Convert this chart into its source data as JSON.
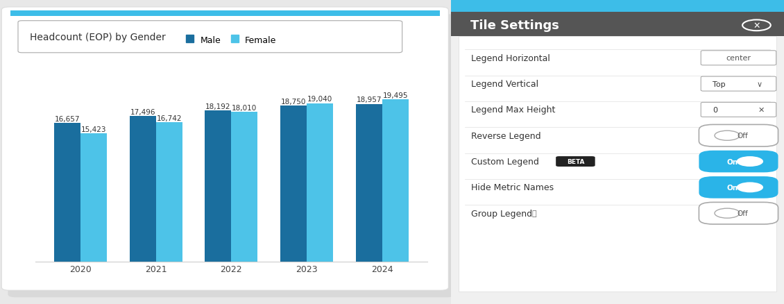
{
  "title": "Headcount (EOP) by Gender",
  "years": [
    "2020",
    "2021",
    "2022",
    "2023",
    "2024"
  ],
  "male_values": [
    16657,
    17496,
    18192,
    18750,
    18957
  ],
  "female_values": [
    15423,
    16742,
    18010,
    19040,
    19495
  ],
  "male_labels": [
    "16,657",
    "17,496",
    "18,192",
    "18,750",
    "18,957"
  ],
  "female_labels": [
    "15,423",
    "16,742",
    "18,010",
    "19,040",
    "19,495"
  ],
  "male_color": "#1a6e9e",
  "female_color": "#4dc3e8",
  "legend_male_color": "#2a7db5",
  "legend_female_color": "#5bcfef",
  "bar_width": 0.35,
  "ylim": [
    0,
    22000
  ],
  "bg_color": "#ffffff",
  "outer_bg": "#e8e8e8",
  "chart_panel_bg": "#ffffff",
  "right_panel_bg": "#ffffff",
  "top_bar_color": "#3dbde8",
  "header_bar_color": "#444444",
  "title_fontsize": 10,
  "label_fontsize": 7.5,
  "legend_fontsize": 9,
  "year_fontsize": 9,
  "settings_items": [
    {
      "label": "Legend Horizontal",
      "value": "Center",
      "type": "input_partial"
    },
    {
      "label": "Legend Vertical",
      "value": "Top",
      "type": "dropdown"
    },
    {
      "label": "Legend Max Height",
      "value": "0",
      "type": "input_x"
    },
    {
      "label": "Reverse Legend",
      "value": "Off",
      "type": "toggle_off"
    },
    {
      "label": "Custom Legend",
      "value": "On",
      "type": "toggle_on",
      "badge": "BETA"
    },
    {
      "label": "Hide Metric Names",
      "value": "On",
      "type": "toggle_on_cursor"
    },
    {
      "label": "Group Legend",
      "value": "Off",
      "type": "toggle_off_info"
    }
  ],
  "tile_settings_title": "Tile Settings"
}
